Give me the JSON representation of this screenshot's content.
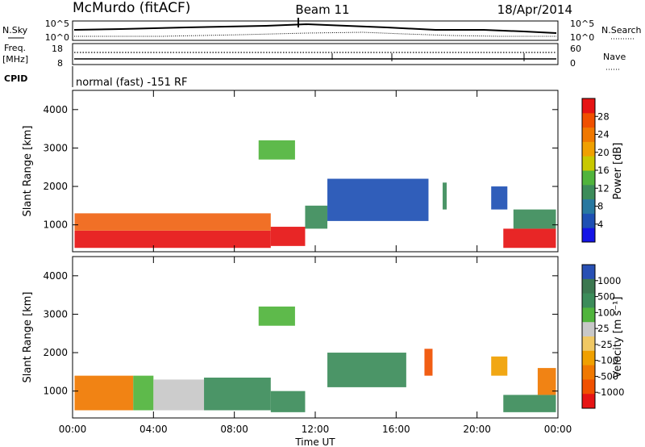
{
  "header": {
    "station": "McMurdo (fitACF)",
    "beam": "Beam 11",
    "date": "18/Apr/2014"
  },
  "status_panels": {
    "nsky_label": "N.Sky",
    "nsky_ticks": [
      "10^5",
      "10^0"
    ],
    "nsearch_label": "N.Search",
    "nsearch_ticks": [
      "10^5",
      "10^0"
    ],
    "freq_label_1": "Freq.",
    "freq_label_2": "[MHz]",
    "freq_ticks": [
      "18",
      "8"
    ],
    "nave_label": "Nave",
    "nave_ticks": [
      "60",
      "0"
    ],
    "cpid_label": "CPID",
    "cpid_text": "normal (fast) -151 RF"
  },
  "chart_data": [
    {
      "type": "heatmap",
      "name": "power-panel",
      "ylabel": "Slant Range [km]",
      "yticks": [
        "1000",
        "2000",
        "3000",
        "4000"
      ],
      "ylim": [
        300,
        4500
      ],
      "xlim": [
        0,
        24
      ],
      "colorbar": {
        "label": "Power [dB]",
        "ticks": [
          "4",
          "8",
          "12",
          "16",
          "20",
          "24",
          "28"
        ],
        "colors": [
          "#1414e6",
          "#1e50b4",
          "#2878a0",
          "#3c8c5a",
          "#50b43c",
          "#c8c800",
          "#f0a000",
          "#f07800",
          "#f05000",
          "#e61414"
        ]
      },
      "bands": [
        {
          "x": [
            0.1,
            9.8
          ],
          "y": [
            400,
            850
          ],
          "value": "strong",
          "color": "#e61414"
        },
        {
          "x": [
            0.1,
            9.8
          ],
          "y": [
            850,
            1300
          ],
          "value": "mixed",
          "color": "#f06414"
        },
        {
          "x": [
            9.8,
            11.5
          ],
          "y": [
            450,
            950
          ],
          "value": "strong",
          "color": "#e61414"
        },
        {
          "x": [
            11.5,
            12.6
          ],
          "y": [
            900,
            1500
          ],
          "value": "mid",
          "color": "#3c8c5a"
        },
        {
          "x": [
            12.6,
            17.6
          ],
          "y": [
            1100,
            2200
          ],
          "value": "weak",
          "color": "#1e50b4"
        },
        {
          "x": [
            18.3,
            18.5
          ],
          "y": [
            1400,
            2100
          ],
          "value": "mid",
          "color": "#3c8c5a"
        },
        {
          "x": [
            20.7,
            21.5
          ],
          "y": [
            1400,
            2000
          ],
          "value": "weak",
          "color": "#1e50b4"
        },
        {
          "x": [
            21.3,
            23.9
          ],
          "y": [
            400,
            900
          ],
          "value": "strong",
          "color": "#e61414"
        },
        {
          "x": [
            21.8,
            23.9
          ],
          "y": [
            900,
            1400
          ],
          "value": "mid",
          "color": "#3c8c5a"
        },
        {
          "x": [
            9.2,
            11.0
          ],
          "y": [
            2700,
            3200
          ],
          "value": "mixed",
          "color": "#50b43c"
        }
      ]
    },
    {
      "type": "heatmap",
      "name": "velocity-panel",
      "xlabel": "Time UT",
      "ylabel": "Slant Range [km]",
      "yticks": [
        "1000",
        "2000",
        "3000",
        "4000"
      ],
      "ylim": [
        300,
        4500
      ],
      "xticks": [
        "00:00",
        "04:00",
        "08:00",
        "12:00",
        "16:00",
        "20:00",
        "00:00"
      ],
      "xlim": [
        0,
        24
      ],
      "colorbar": {
        "label": "Velocity [m s⁻¹]",
        "ticks": [
          "1000",
          "500",
          "100",
          "25",
          "-25",
          "-100",
          "-500",
          "-1000"
        ],
        "colors": [
          "#2850b4",
          "#3c7850",
          "#3c8c5a",
          "#50b43c",
          "#c8c8c8",
          "#f0c864",
          "#f0a000",
          "#f07800",
          "#f05000",
          "#e61414"
        ]
      },
      "bands": [
        {
          "x": [
            0.1,
            3.0
          ],
          "y": [
            500,
            1400
          ],
          "value": "negative",
          "color": "#f07800"
        },
        {
          "x": [
            3.0,
            4.0
          ],
          "y": [
            500,
            1400
          ],
          "value": "positive",
          "color": "#50b43c"
        },
        {
          "x": [
            4.0,
            6.5
          ],
          "y": [
            500,
            1300
          ],
          "value": "near-zero",
          "color": "#c8c8c8"
        },
        {
          "x": [
            6.5,
            9.8
          ],
          "y": [
            500,
            1350
          ],
          "value": "positive",
          "color": "#3c8c5a"
        },
        {
          "x": [
            9.8,
            11.5
          ],
          "y": [
            450,
            1000
          ],
          "value": "mixed",
          "color": "#3c8c5a"
        },
        {
          "x": [
            12.6,
            16.5
          ],
          "y": [
            1100,
            2000
          ],
          "value": "positive",
          "color": "#3c8c5a"
        },
        {
          "x": [
            17.4,
            17.8
          ],
          "y": [
            1400,
            2100
          ],
          "value": "negative",
          "color": "#f05000"
        },
        {
          "x": [
            20.7,
            21.5
          ],
          "y": [
            1400,
            1900
          ],
          "value": "negative",
          "color": "#f0a000"
        },
        {
          "x": [
            21.3,
            23.9
          ],
          "y": [
            450,
            900
          ],
          "value": "positive",
          "color": "#3c8c5a"
        },
        {
          "x": [
            23.0,
            23.9
          ],
          "y": [
            900,
            1600
          ],
          "value": "negative",
          "color": "#f07800"
        },
        {
          "x": [
            9.2,
            11.0
          ],
          "y": [
            2700,
            3200
          ],
          "value": "mixed",
          "color": "#50b43c"
        }
      ]
    }
  ]
}
